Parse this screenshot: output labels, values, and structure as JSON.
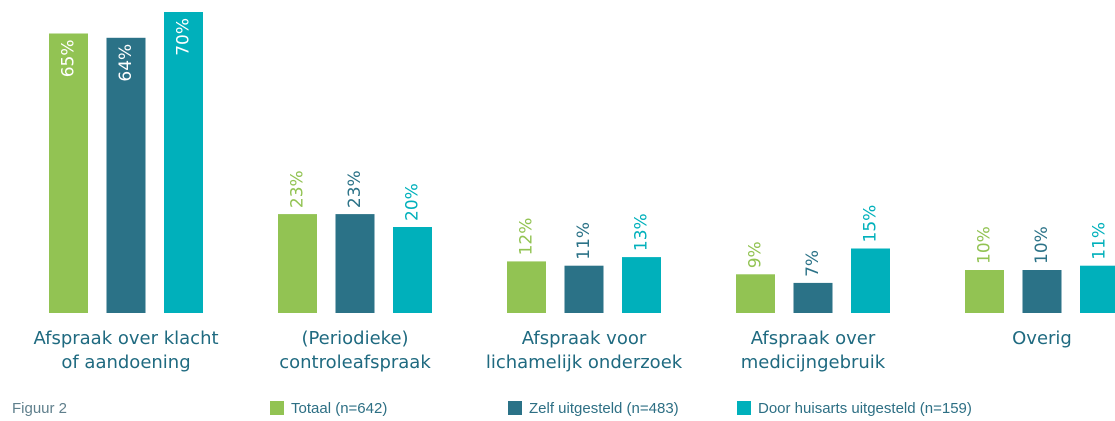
{
  "chart_data": {
    "type": "bar",
    "caption": "Figuur 2",
    "categories": [
      [
        "Afspraak over klacht",
        "of aandoening"
      ],
      [
        "(Periodieke)",
        "controleafspraak"
      ],
      [
        "Afspraak voor",
        "lichamelijk  onderzoek"
      ],
      [
        "Afspraak over",
        "medicijngebruik"
      ],
      [
        "Overig"
      ]
    ],
    "series": [
      {
        "name": "Totaal (n=642)",
        "color": "#92c353",
        "values": [
          65,
          23,
          12,
          9,
          10
        ],
        "value_labels": [
          "65%",
          "23%",
          "12%",
          "9%",
          "10%"
        ]
      },
      {
        "name": "Zelf uitgesteld (n=483)",
        "color": "#2b7287",
        "values": [
          64,
          23,
          11,
          7,
          10
        ],
        "value_labels": [
          "64%",
          "23%",
          "11%",
          "7%",
          "10%"
        ]
      },
      {
        "name": "Door huisarts uitgesteld (n=159)",
        "color": "#00b0bb",
        "values": [
          70,
          20,
          13,
          15,
          11
        ],
        "value_labels": [
          "70%",
          "20%",
          "13%",
          "15%",
          "11%"
        ]
      }
    ],
    "legend": "bottom"
  }
}
